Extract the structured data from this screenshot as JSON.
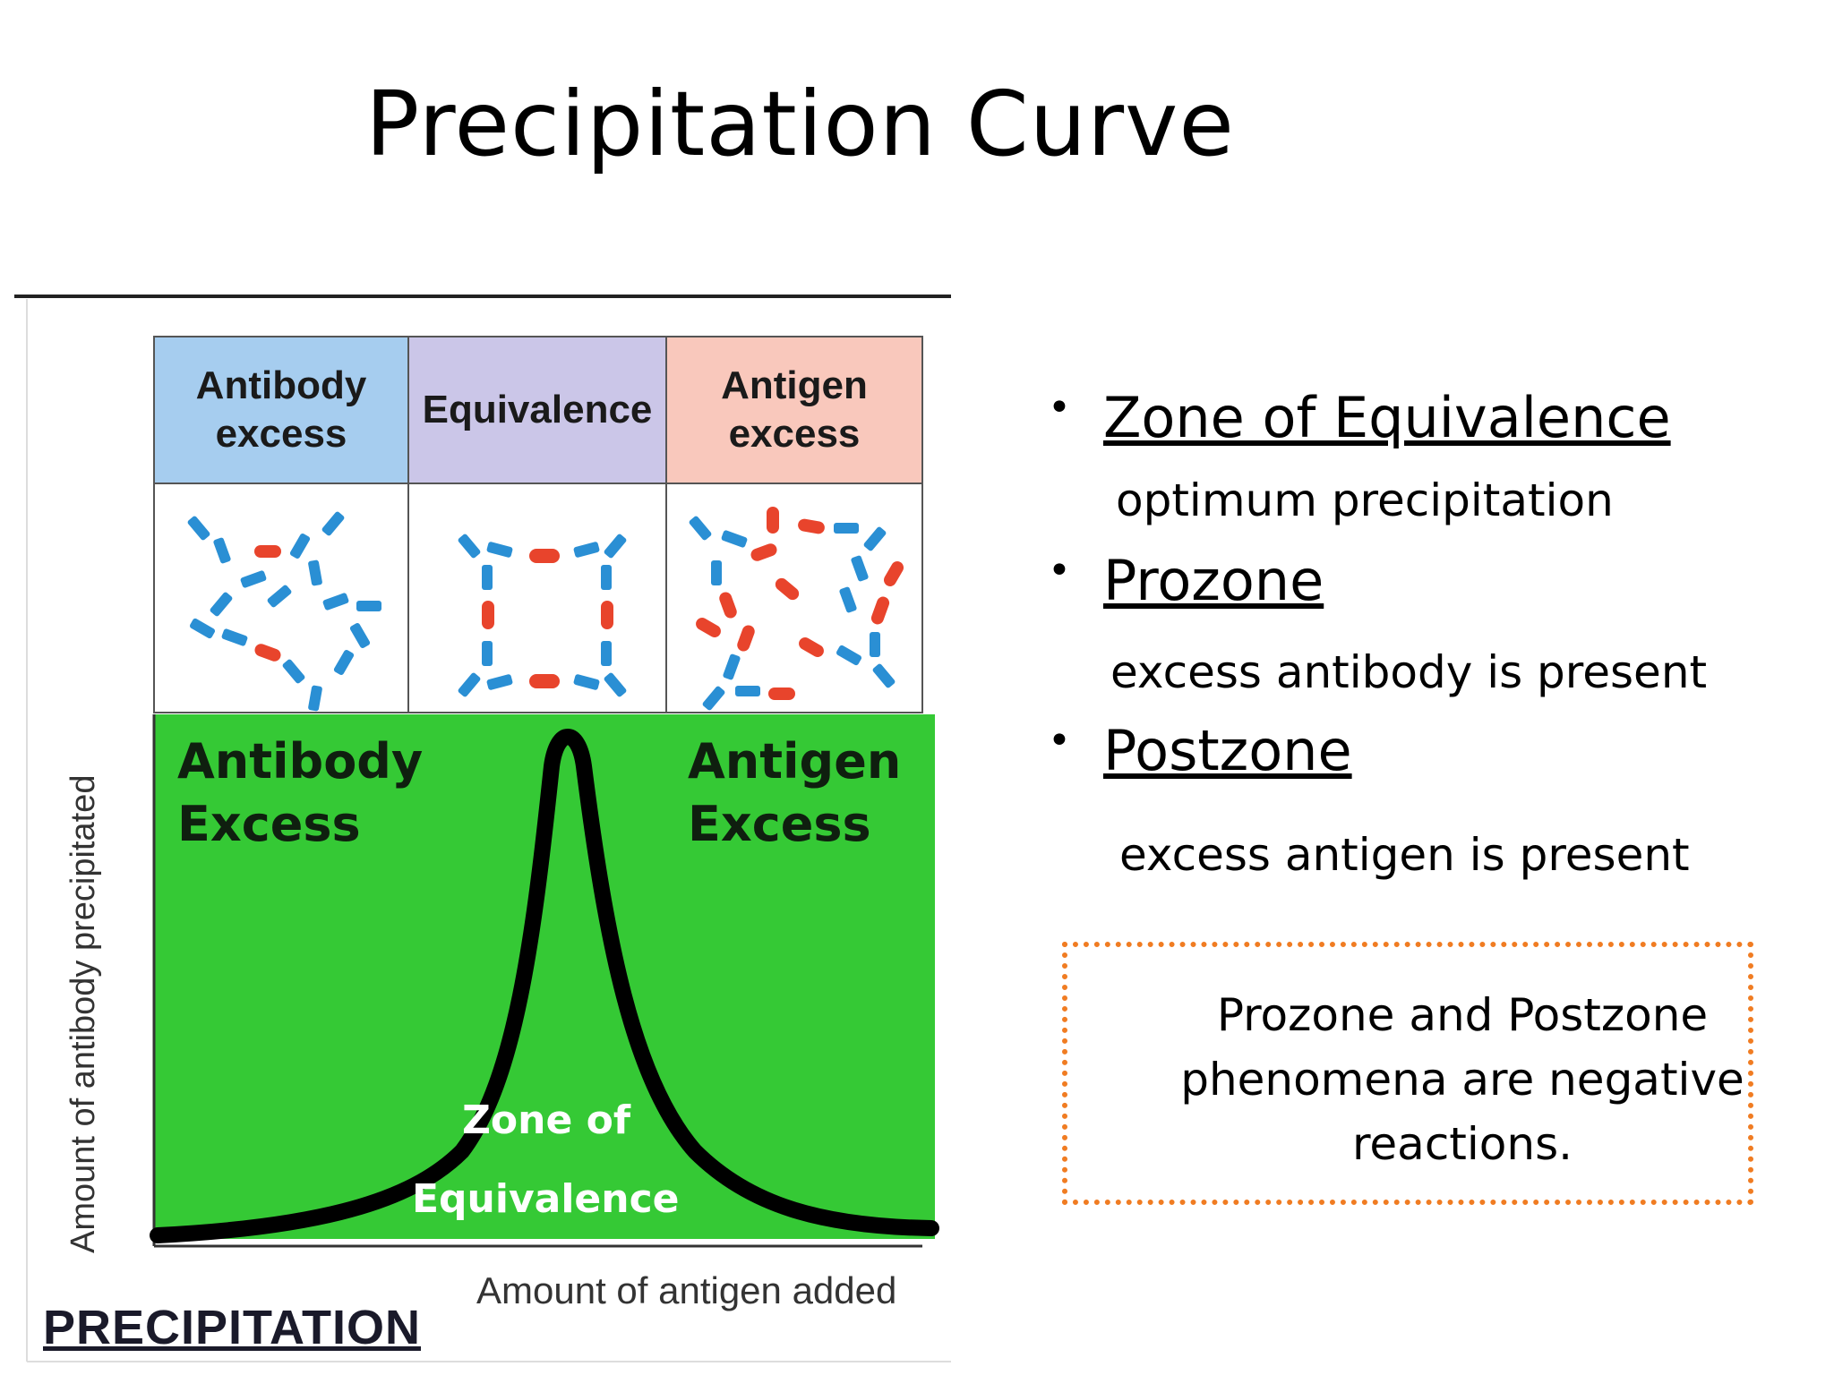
{
  "slide": {
    "title": "Precipitation Curve"
  },
  "figure": {
    "zone_headers": [
      {
        "label": "Antibody excess",
        "color": "#a6cdef"
      },
      {
        "label": "Equivalence",
        "color": "#cbc6e8"
      },
      {
        "label": "Antigen excess",
        "color": "#f9c8bc"
      }
    ],
    "green_left": "Antibody\nExcess",
    "green_right": "Antigen\nExcess",
    "zone_of_equivalence": [
      "Zone of",
      "Equivalence"
    ],
    "y_axis_label": "Amount of antibody precipitated",
    "x_axis_label": "Amount of antigen added",
    "caption": "PRECIPITATION",
    "colors": {
      "plot_background": "#35c935",
      "curve": "#000000",
      "antibody": "#2a8fd4",
      "antigen": "#e8442c"
    }
  },
  "bullets": [
    {
      "heading": "Zone of Equivalence",
      "description": "optimum precipitation"
    },
    {
      "heading": "Prozone",
      "description": "excess antibody is present"
    },
    {
      "heading": "Postzone",
      "description": "excess antigen is present"
    }
  ],
  "note": {
    "text_lines": [
      "Prozone and Postzone",
      "phenomena are negative",
      "reactions."
    ],
    "border_color": "#f07c22"
  }
}
